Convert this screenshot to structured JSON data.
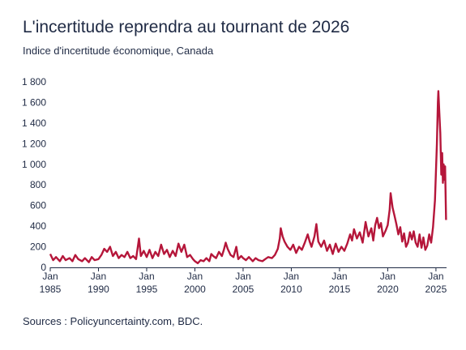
{
  "chart_data": {
    "type": "line",
    "title": "L'incertitude reprendra au tournant de 2026",
    "subtitle": "Indice d'incertitude économique, Canada",
    "source": "Sources : Policyuncertainty.com, BDC.",
    "xlabel": "",
    "ylabel": "",
    "ylim": [
      0,
      1800
    ],
    "xlim": [
      1985,
      2026.1
    ],
    "grid": false,
    "y_ticks": [
      {
        "value": 0,
        "label": "0"
      },
      {
        "value": 200,
        "label": "200"
      },
      {
        "value": 400,
        "label": "400"
      },
      {
        "value": 600,
        "label": "600"
      },
      {
        "value": 800,
        "label": "800"
      },
      {
        "value": 1000,
        "label": "1 000"
      },
      {
        "value": 1200,
        "label": "1 200"
      },
      {
        "value": 1400,
        "label": "1 400"
      },
      {
        "value": 1600,
        "label": "1 600"
      },
      {
        "value": 1800,
        "label": "1 800"
      }
    ],
    "x_ticks": [
      {
        "value": 1985,
        "month": "Jan",
        "year": "1985"
      },
      {
        "value": 1990,
        "month": "Jan",
        "year": "1990"
      },
      {
        "value": 1995,
        "month": "Jan",
        "year": "1995"
      },
      {
        "value": 2000,
        "month": "Jan",
        "year": "2000"
      },
      {
        "value": 2005,
        "month": "Jan",
        "year": "2005"
      },
      {
        "value": 2010,
        "month": "Jan",
        "year": "2010"
      },
      {
        "value": 2015,
        "month": "Jan",
        "year": "2015"
      },
      {
        "value": 2020,
        "month": "Jan",
        "year": "2020"
      },
      {
        "value": 2025,
        "month": "Jan",
        "year": "2025"
      }
    ],
    "series": [
      {
        "color": "#b5163a",
        "points": [
          [
            1985.0,
            130
          ],
          [
            1985.3,
            70
          ],
          [
            1985.6,
            100
          ],
          [
            1986.0,
            60
          ],
          [
            1986.3,
            110
          ],
          [
            1986.6,
            70
          ],
          [
            1987.0,
            90
          ],
          [
            1987.3,
            60
          ],
          [
            1987.6,
            120
          ],
          [
            1987.9,
            80
          ],
          [
            1988.3,
            60
          ],
          [
            1988.6,
            90
          ],
          [
            1989.0,
            50
          ],
          [
            1989.3,
            100
          ],
          [
            1989.6,
            70
          ],
          [
            1990.0,
            80
          ],
          [
            1990.3,
            120
          ],
          [
            1990.6,
            180
          ],
          [
            1990.9,
            150
          ],
          [
            1991.2,
            200
          ],
          [
            1991.5,
            110
          ],
          [
            1991.8,
            150
          ],
          [
            1992.1,
            90
          ],
          [
            1992.4,
            120
          ],
          [
            1992.7,
            100
          ],
          [
            1993.0,
            150
          ],
          [
            1993.3,
            90
          ],
          [
            1993.6,
            110
          ],
          [
            1993.9,
            80
          ],
          [
            1994.2,
            280
          ],
          [
            1994.4,
            110
          ],
          [
            1994.7,
            160
          ],
          [
            1995.0,
            100
          ],
          [
            1995.3,
            170
          ],
          [
            1995.6,
            90
          ],
          [
            1995.9,
            150
          ],
          [
            1996.2,
            110
          ],
          [
            1996.5,
            220
          ],
          [
            1996.8,
            130
          ],
          [
            1997.1,
            170
          ],
          [
            1997.4,
            100
          ],
          [
            1997.7,
            160
          ],
          [
            1998.0,
            110
          ],
          [
            1998.3,
            230
          ],
          [
            1998.6,
            150
          ],
          [
            1998.9,
            220
          ],
          [
            1999.2,
            100
          ],
          [
            1999.5,
            120
          ],
          [
            1999.8,
            80
          ],
          [
            2000.0,
            60
          ],
          [
            2000.3,
            40
          ],
          [
            2000.6,
            70
          ],
          [
            2000.9,
            60
          ],
          [
            2001.2,
            90
          ],
          [
            2001.5,
            60
          ],
          [
            2001.7,
            130
          ],
          [
            2001.9,
            110
          ],
          [
            2002.2,
            90
          ],
          [
            2002.5,
            150
          ],
          [
            2002.8,
            110
          ],
          [
            2003.0,
            170
          ],
          [
            2003.2,
            240
          ],
          [
            2003.4,
            180
          ],
          [
            2003.7,
            120
          ],
          [
            2004.0,
            100
          ],
          [
            2004.3,
            200
          ],
          [
            2004.5,
            80
          ],
          [
            2004.8,
            110
          ],
          [
            2005.0,
            90
          ],
          [
            2005.3,
            70
          ],
          [
            2005.6,
            100
          ],
          [
            2006.0,
            60
          ],
          [
            2006.3,
            90
          ],
          [
            2006.6,
            70
          ],
          [
            2007.0,
            60
          ],
          [
            2007.3,
            80
          ],
          [
            2007.6,
            100
          ],
          [
            2008.0,
            90
          ],
          [
            2008.3,
            120
          ],
          [
            2008.6,
            180
          ],
          [
            2008.8,
            280
          ],
          [
            2008.9,
            380
          ],
          [
            2009.1,
            300
          ],
          [
            2009.3,
            250
          ],
          [
            2009.6,
            200
          ],
          [
            2009.9,
            170
          ],
          [
            2010.2,
            220
          ],
          [
            2010.5,
            140
          ],
          [
            2010.8,
            200
          ],
          [
            2011.1,
            170
          ],
          [
            2011.4,
            240
          ],
          [
            2011.7,
            320
          ],
          [
            2011.9,
            250
          ],
          [
            2012.1,
            200
          ],
          [
            2012.4,
            300
          ],
          [
            2012.6,
            420
          ],
          [
            2012.8,
            250
          ],
          [
            2013.1,
            200
          ],
          [
            2013.4,
            260
          ],
          [
            2013.7,
            160
          ],
          [
            2014.0,
            220
          ],
          [
            2014.3,
            130
          ],
          [
            2014.6,
            230
          ],
          [
            2014.9,
            150
          ],
          [
            2015.2,
            200
          ],
          [
            2015.5,
            160
          ],
          [
            2015.8,
            230
          ],
          [
            2016.1,
            320
          ],
          [
            2016.3,
            260
          ],
          [
            2016.5,
            370
          ],
          [
            2016.8,
            280
          ],
          [
            2017.1,
            340
          ],
          [
            2017.4,
            240
          ],
          [
            2017.7,
            440
          ],
          [
            2018.0,
            300
          ],
          [
            2018.3,
            380
          ],
          [
            2018.5,
            260
          ],
          [
            2018.7,
            410
          ],
          [
            2018.9,
            480
          ],
          [
            2019.1,
            380
          ],
          [
            2019.3,
            430
          ],
          [
            2019.5,
            300
          ],
          [
            2019.8,
            360
          ],
          [
            2020.0,
            410
          ],
          [
            2020.2,
            560
          ],
          [
            2020.3,
            720
          ],
          [
            2020.5,
            580
          ],
          [
            2020.7,
            500
          ],
          [
            2020.9,
            420
          ],
          [
            2021.1,
            320
          ],
          [
            2021.3,
            390
          ],
          [
            2021.5,
            250
          ],
          [
            2021.7,
            330
          ],
          [
            2021.9,
            200
          ],
          [
            2022.1,
            240
          ],
          [
            2022.3,
            340
          ],
          [
            2022.5,
            270
          ],
          [
            2022.7,
            350
          ],
          [
            2022.9,
            240
          ],
          [
            2023.1,
            200
          ],
          [
            2023.3,
            320
          ],
          [
            2023.5,
            190
          ],
          [
            2023.7,
            290
          ],
          [
            2023.9,
            170
          ],
          [
            2024.1,
            210
          ],
          [
            2024.3,
            320
          ],
          [
            2024.5,
            240
          ],
          [
            2024.7,
            390
          ],
          [
            2024.9,
            650
          ],
          [
            2025.1,
            1200
          ],
          [
            2025.2,
            1600
          ],
          [
            2025.25,
            1710
          ],
          [
            2025.35,
            1500
          ],
          [
            2025.45,
            1300
          ],
          [
            2025.55,
            900
          ],
          [
            2025.65,
            1110
          ],
          [
            2025.72,
            820
          ],
          [
            2025.8,
            1000
          ],
          [
            2025.88,
            850
          ],
          [
            2025.95,
            980
          ],
          [
            2026.05,
            460
          ]
        ]
      }
    ]
  }
}
